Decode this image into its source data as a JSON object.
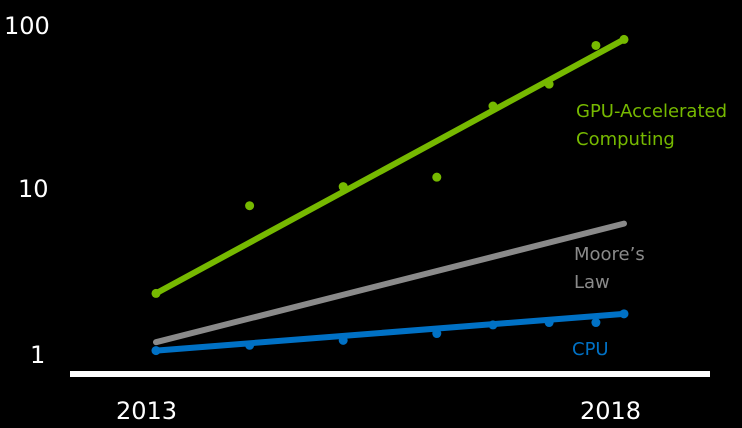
{
  "chart_data": {
    "type": "line",
    "yscale": "log",
    "ylim": [
      1,
      100
    ],
    "xlim": [
      2013,
      2018
    ],
    "y_tick_labels": [
      "100",
      "10",
      "1"
    ],
    "x_tick_labels": [
      "2013",
      "2018"
    ],
    "grid": false,
    "series": [
      {
        "name_lines": [
          "GPU-Accelerated",
          "Computing"
        ],
        "color": "#76b900",
        "trend": [
          [
            2013,
            2.3
          ],
          [
            2018,
            85
          ]
        ],
        "points": [
          [
            2013,
            2.3
          ],
          [
            2014,
            8
          ],
          [
            2015,
            10.5
          ],
          [
            2016,
            12
          ],
          [
            2016.6,
            33
          ],
          [
            2017.2,
            45
          ],
          [
            2017.7,
            78
          ],
          [
            2018,
            85
          ]
        ]
      },
      {
        "name_lines": [
          "Moore’s",
          "Law"
        ],
        "color": "#8a8a8a",
        "trend": [
          [
            2013,
            1.15
          ],
          [
            2018,
            6.2
          ]
        ],
        "points": []
      },
      {
        "name_lines": [
          "CPU"
        ],
        "color": "#0071c5",
        "trend": [
          [
            2013,
            1.02
          ],
          [
            2018,
            1.72
          ]
        ],
        "points": [
          [
            2013,
            1.02
          ],
          [
            2014,
            1.1
          ],
          [
            2015,
            1.18
          ],
          [
            2016,
            1.3
          ],
          [
            2016.6,
            1.47
          ],
          [
            2017.2,
            1.52
          ],
          [
            2017.7,
            1.52
          ],
          [
            2018,
            1.72
          ]
        ]
      }
    ]
  }
}
